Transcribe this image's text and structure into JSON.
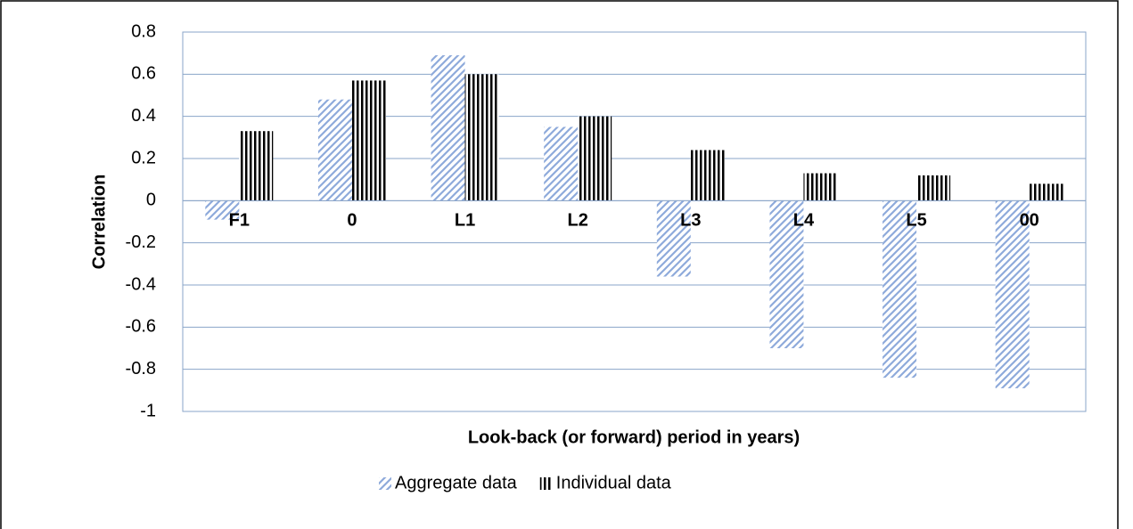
{
  "chart_data": {
    "type": "bar",
    "categories": [
      "F1",
      "0",
      "L1",
      "L2",
      "L3",
      "L4",
      "L5",
      "00"
    ],
    "series": [
      {
        "name": "Aggregate data",
        "color": "#8eaadb",
        "pattern": "diagonal",
        "values": [
          -0.09,
          0.48,
          0.69,
          0.35,
          -0.36,
          -0.7,
          -0.84,
          -0.89
        ]
      },
      {
        "name": "Individual data",
        "color": "#000000",
        "pattern": "vertical",
        "values": [
          0.33,
          0.57,
          0.6,
          0.4,
          0.24,
          0.13,
          0.12,
          0.08
        ]
      }
    ],
    "ylabel": "Correlation",
    "xlabel": "Look-back (or forward) period in years)",
    "ylim": [
      -1,
      0.8
    ],
    "yticks": [
      -1,
      -0.8,
      -0.6,
      -0.4,
      -0.2,
      0,
      0.2,
      0.4,
      0.6,
      0.8
    ],
    "grid": true,
    "legend": "bottom"
  }
}
